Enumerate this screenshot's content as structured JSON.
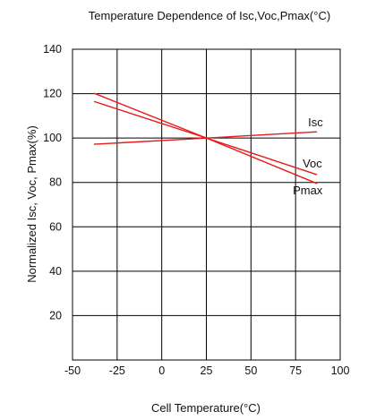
{
  "chart_data": {
    "type": "line",
    "title": "Temperature Dependence of Isc,Voc,Pmax(°C)",
    "xlabel": "Cell Temperature(°C)",
    "ylabel": "Normalized Isc, Voc, Pmax(%)",
    "xlim": [
      -50,
      100
    ],
    "ylim": [
      0,
      140
    ],
    "xticks": [
      -50,
      -25,
      0,
      25,
      50,
      75,
      100
    ],
    "xtick_labels": [
      "-50",
      "-25",
      "0",
      "25",
      "50",
      "75",
      "100"
    ],
    "yticks": [
      20,
      40,
      60,
      80,
      100,
      120,
      140
    ],
    "ytick_labels": [
      "20",
      "40",
      "60",
      "80",
      "100",
      "120",
      "140"
    ],
    "grid": true,
    "line_color": "#e8191b",
    "series": [
      {
        "name": "Isc",
        "x": [
          -38,
          25,
          87
        ],
        "y": [
          97.2,
          100,
          102.8
        ]
      },
      {
        "name": "Voc",
        "x": [
          -38,
          25,
          87
        ],
        "y": [
          116.5,
          100,
          83.5
        ]
      },
      {
        "name": "Pmax",
        "x": [
          -38,
          25,
          87
        ],
        "y": [
          120.2,
          100,
          79.5
        ]
      }
    ]
  }
}
